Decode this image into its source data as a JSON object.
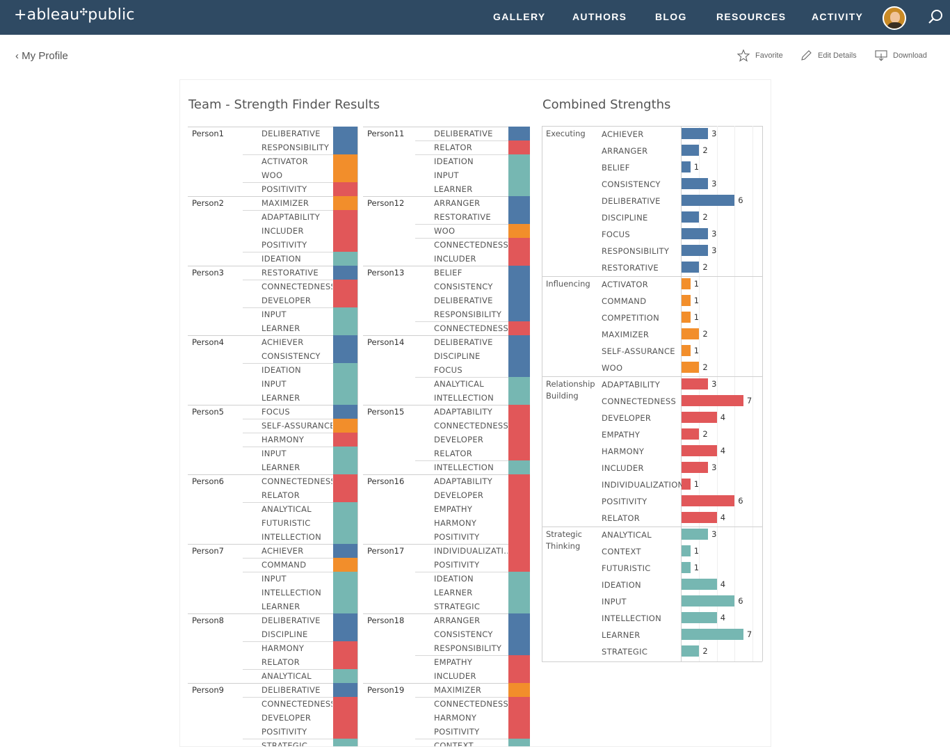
{
  "header": {
    "logo_text": "+ableau",
    "logo_sub": "public",
    "nav": [
      "GALLERY",
      "AUTHORS",
      "BLOG",
      "RESOURCES",
      "ACTIVITY"
    ]
  },
  "subbar": {
    "back_label": "My Profile",
    "favorite_label": "Favorite",
    "edit_label": "Edit Details",
    "download_label": "Download"
  },
  "colors": {
    "Executing": "#4e79a7",
    "Influencing": "#f28e2b",
    "Relationship Building": "#e15759",
    "Strategic Thinking": "#76b7b2"
  },
  "left_title": "Team - Strength Finder Results",
  "right_title": "Combined Strengths",
  "people_col1": [
    {
      "name": "Person1",
      "strengths": [
        [
          "DELIBERATIVE",
          "Executing"
        ],
        [
          "RESPONSIBILITY",
          "Executing"
        ],
        [
          "ACTIVATOR",
          "Influencing"
        ],
        [
          "WOO",
          "Influencing"
        ],
        [
          "POSITIVITY",
          "Relationship Building"
        ]
      ]
    },
    {
      "name": "Person2",
      "strengths": [
        [
          "MAXIMIZER",
          "Influencing"
        ],
        [
          "ADAPTABILITY",
          "Relationship Building"
        ],
        [
          "INCLUDER",
          "Relationship Building"
        ],
        [
          "POSITIVITY",
          "Relationship Building"
        ],
        [
          "IDEATION",
          "Strategic Thinking"
        ]
      ]
    },
    {
      "name": "Person3",
      "strengths": [
        [
          "RESTORATIVE",
          "Executing"
        ],
        [
          "CONNECTEDNESS",
          "Relationship Building"
        ],
        [
          "DEVELOPER",
          "Relationship Building"
        ],
        [
          "INPUT",
          "Strategic Thinking"
        ],
        [
          "LEARNER",
          "Strategic Thinking"
        ]
      ]
    },
    {
      "name": "Person4",
      "strengths": [
        [
          "ACHIEVER",
          "Executing"
        ],
        [
          "CONSISTENCY",
          "Executing"
        ],
        [
          "IDEATION",
          "Strategic Thinking"
        ],
        [
          "INPUT",
          "Strategic Thinking"
        ],
        [
          "LEARNER",
          "Strategic Thinking"
        ]
      ]
    },
    {
      "name": "Person5",
      "strengths": [
        [
          "FOCUS",
          "Executing"
        ],
        [
          "SELF-ASSURANCE",
          "Influencing"
        ],
        [
          "HARMONY",
          "Relationship Building"
        ],
        [
          "INPUT",
          "Strategic Thinking"
        ],
        [
          "LEARNER",
          "Strategic Thinking"
        ]
      ]
    },
    {
      "name": "Person6",
      "strengths": [
        [
          "CONNECTEDNESS",
          "Relationship Building"
        ],
        [
          "RELATOR",
          "Relationship Building"
        ],
        [
          "ANALYTICAL",
          "Strategic Thinking"
        ],
        [
          "FUTURISTIC",
          "Strategic Thinking"
        ],
        [
          "INTELLECTION",
          "Strategic Thinking"
        ]
      ]
    },
    {
      "name": "Person7",
      "strengths": [
        [
          "ACHIEVER",
          "Executing"
        ],
        [
          "COMMAND",
          "Influencing"
        ],
        [
          "INPUT",
          "Strategic Thinking"
        ],
        [
          "INTELLECTION",
          "Strategic Thinking"
        ],
        [
          "LEARNER",
          "Strategic Thinking"
        ]
      ]
    },
    {
      "name": "Person8",
      "strengths": [
        [
          "DELIBERATIVE",
          "Executing"
        ],
        [
          "DISCIPLINE",
          "Executing"
        ],
        [
          "HARMONY",
          "Relationship Building"
        ],
        [
          "RELATOR",
          "Relationship Building"
        ],
        [
          "ANALYTICAL",
          "Strategic Thinking"
        ]
      ]
    },
    {
      "name": "Person9",
      "strengths": [
        [
          "DELIBERATIVE",
          "Executing"
        ],
        [
          "CONNECTEDNESS",
          "Relationship Building"
        ],
        [
          "DEVELOPER",
          "Relationship Building"
        ],
        [
          "POSITIVITY",
          "Relationship Building"
        ],
        [
          "STRATEGIC",
          "Strategic Thinking"
        ]
      ]
    }
  ],
  "people_col2": [
    {
      "name": "Person11",
      "strengths": [
        [
          "DELIBERATIVE",
          "Executing"
        ],
        [
          "RELATOR",
          "Relationship Building"
        ],
        [
          "IDEATION",
          "Strategic Thinking"
        ],
        [
          "INPUT",
          "Strategic Thinking"
        ],
        [
          "LEARNER",
          "Strategic Thinking"
        ]
      ]
    },
    {
      "name": "Person12",
      "strengths": [
        [
          "ARRANGER",
          "Executing"
        ],
        [
          "RESTORATIVE",
          "Executing"
        ],
        [
          "WOO",
          "Influencing"
        ],
        [
          "CONNECTEDNESS",
          "Relationship Building"
        ],
        [
          "INCLUDER",
          "Relationship Building"
        ]
      ]
    },
    {
      "name": "Person13",
      "strengths": [
        [
          "BELIEF",
          "Executing"
        ],
        [
          "CONSISTENCY",
          "Executing"
        ],
        [
          "DELIBERATIVE",
          "Executing"
        ],
        [
          "RESPONSIBILITY",
          "Executing"
        ],
        [
          "CONNECTEDNESS",
          "Relationship Building"
        ]
      ]
    },
    {
      "name": "Person14",
      "strengths": [
        [
          "DELIBERATIVE",
          "Executing"
        ],
        [
          "DISCIPLINE",
          "Executing"
        ],
        [
          "FOCUS",
          "Executing"
        ],
        [
          "ANALYTICAL",
          "Strategic Thinking"
        ],
        [
          "INTELLECTION",
          "Strategic Thinking"
        ]
      ]
    },
    {
      "name": "Person15",
      "strengths": [
        [
          "ADAPTABILITY",
          "Relationship Building"
        ],
        [
          "CONNECTEDNESS",
          "Relationship Building"
        ],
        [
          "DEVELOPER",
          "Relationship Building"
        ],
        [
          "RELATOR",
          "Relationship Building"
        ],
        [
          "INTELLECTION",
          "Strategic Thinking"
        ]
      ]
    },
    {
      "name": "Person16",
      "strengths": [
        [
          "ADAPTABILITY",
          "Relationship Building"
        ],
        [
          "DEVELOPER",
          "Relationship Building"
        ],
        [
          "EMPATHY",
          "Relationship Building"
        ],
        [
          "HARMONY",
          "Relationship Building"
        ],
        [
          "POSITIVITY",
          "Relationship Building"
        ]
      ]
    },
    {
      "name": "Person17",
      "strengths": [
        [
          "INDIVIDUALIZATI...",
          "Relationship Building"
        ],
        [
          "POSITIVITY",
          "Relationship Building"
        ],
        [
          "IDEATION",
          "Strategic Thinking"
        ],
        [
          "LEARNER",
          "Strategic Thinking"
        ],
        [
          "STRATEGIC",
          "Strategic Thinking"
        ]
      ]
    },
    {
      "name": "Person18",
      "strengths": [
        [
          "ARRANGER",
          "Executing"
        ],
        [
          "CONSISTENCY",
          "Executing"
        ],
        [
          "RESPONSIBILITY",
          "Executing"
        ],
        [
          "EMPATHY",
          "Relationship Building"
        ],
        [
          "INCLUDER",
          "Relationship Building"
        ]
      ]
    },
    {
      "name": "Person19",
      "strengths": [
        [
          "MAXIMIZER",
          "Influencing"
        ],
        [
          "CONNECTEDNESS",
          "Relationship Building"
        ],
        [
          "HARMONY",
          "Relationship Building"
        ],
        [
          "POSITIVITY",
          "Relationship Building"
        ],
        [
          "CONTEXT",
          "Strategic Thinking"
        ]
      ]
    }
  ],
  "chart_data": {
    "type": "bar",
    "title": "Combined Strengths",
    "orientation": "horizontal",
    "groups": [
      {
        "name": "Executing",
        "items": [
          [
            "ACHIEVER",
            3
          ],
          [
            "ARRANGER",
            2
          ],
          [
            "BELIEF",
            1
          ],
          [
            "CONSISTENCY",
            3
          ],
          [
            "DELIBERATIVE",
            6
          ],
          [
            "DISCIPLINE",
            2
          ],
          [
            "FOCUS",
            3
          ],
          [
            "RESPONSIBILITY",
            3
          ],
          [
            "RESTORATIVE",
            2
          ]
        ]
      },
      {
        "name": "Influencing",
        "items": [
          [
            "ACTIVATOR",
            1
          ],
          [
            "COMMAND",
            1
          ],
          [
            "COMPETITION",
            1
          ],
          [
            "MAXIMIZER",
            2
          ],
          [
            "SELF-ASSURANCE",
            1
          ],
          [
            "WOO",
            2
          ]
        ]
      },
      {
        "name": "Relationship Building",
        "items": [
          [
            "ADAPTABILITY",
            3
          ],
          [
            "CONNECTEDNESS",
            7
          ],
          [
            "DEVELOPER",
            4
          ],
          [
            "EMPATHY",
            2
          ],
          [
            "HARMONY",
            4
          ],
          [
            "INCLUDER",
            3
          ],
          [
            "INDIVIDUALIZATION",
            1
          ],
          [
            "POSITIVITY",
            6
          ],
          [
            "RELATOR",
            4
          ]
        ]
      },
      {
        "name": "Strategic Thinking",
        "items": [
          [
            "ANALYTICAL",
            3
          ],
          [
            "CONTEXT",
            1
          ],
          [
            "FUTURISTIC",
            1
          ],
          [
            "IDEATION",
            4
          ],
          [
            "INPUT",
            6
          ],
          [
            "INTELLECTION",
            4
          ],
          [
            "LEARNER",
            7
          ],
          [
            "STRATEGIC",
            2
          ]
        ]
      }
    ],
    "xlim": [
      0,
      8
    ],
    "grid": true
  }
}
